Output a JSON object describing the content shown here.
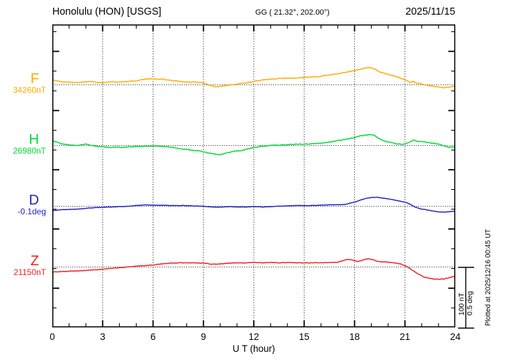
{
  "header": {
    "title": "Honolulu (HON)  [USGS]",
    "coords": "GG ( 21.32°, 202.00°)",
    "date": "2025/11/15"
  },
  "side_notes": {
    "scale_bar_line1": "100 nT",
    "scale_bar_line2": "0.5 deg",
    "plotted_at": "Plotted at 2025/12/16 00:45 UT"
  },
  "chart_data": {
    "type": "line",
    "title": "Honolulu (HON) [USGS] magnetogram 2025/11/15",
    "xlabel": "U T (hour)",
    "xlim": [
      0,
      24
    ],
    "x_ticks": [
      0,
      3,
      6,
      9,
      12,
      15,
      18,
      21,
      24
    ],
    "x_minor_step": 1,
    "grid": "vertical dotted lines every 3 hours; dotted horizontal baseline per trace",
    "legend_position": "left margin channel labels",
    "scale_bar": {
      "nT": 100,
      "deg": 0.5
    },
    "points_are": "offsets from each channel baseline, in the channel unit",
    "series": [
      {
        "name": "F",
        "baseline_label": "34260nT",
        "baseline_value": 34260,
        "unit": "nT",
        "color": "#FFAB00",
        "points": [
          [
            0,
            8
          ],
          [
            0.5,
            5.2
          ],
          [
            1,
            4.7
          ],
          [
            1.5,
            4.1
          ],
          [
            2,
            4.7
          ],
          [
            2.3,
            5.8
          ],
          [
            2.6,
            4.1
          ],
          [
            3,
            3.5
          ],
          [
            3.5,
            5.2
          ],
          [
            4,
            4.7
          ],
          [
            4.5,
            5.8
          ],
          [
            5,
            6.4
          ],
          [
            5.5,
            9.3
          ],
          [
            6,
            9.9
          ],
          [
            6.5,
            9.3
          ],
          [
            7,
            7.6
          ],
          [
            7.5,
            5.8
          ],
          [
            8,
            4.7
          ],
          [
            8.5,
            4.7
          ],
          [
            9,
            3.5
          ],
          [
            9.3,
            0
          ],
          [
            9.7,
            -3.5
          ],
          [
            10,
            -2.9
          ],
          [
            10.5,
            -0.6
          ],
          [
            11,
            1.2
          ],
          [
            11.5,
            2.9
          ],
          [
            12,
            5.8
          ],
          [
            12.5,
            8.1
          ],
          [
            13,
            9.3
          ],
          [
            13.5,
            10.5
          ],
          [
            14,
            11
          ],
          [
            14.5,
            11.6
          ],
          [
            15,
            12.2
          ],
          [
            15.5,
            12.8
          ],
          [
            16,
            14
          ],
          [
            16.5,
            16.3
          ],
          [
            17,
            18.6
          ],
          [
            17.5,
            20.9
          ],
          [
            18,
            23.8
          ],
          [
            18.3,
            25.6
          ],
          [
            18.6,
            27.9
          ],
          [
            18.9,
            28.5
          ],
          [
            19.2,
            26.2
          ],
          [
            19.5,
            21.5
          ],
          [
            20,
            17.4
          ],
          [
            20.5,
            13.4
          ],
          [
            21,
            8.1
          ],
          [
            21.3,
            4.7
          ],
          [
            21.5,
            5.8
          ],
          [
            21.7,
            2.9
          ],
          [
            22,
            1.2
          ],
          [
            22.3,
            -0.6
          ],
          [
            22.7,
            -2.3
          ],
          [
            23,
            -3.5
          ],
          [
            23.3,
            -4.7
          ],
          [
            23.6,
            -4.1
          ],
          [
            24,
            -2.3
          ]
        ]
      },
      {
        "name": "H",
        "baseline_label": "26980nT",
        "baseline_value": 26980,
        "unit": "nT",
        "color": "#00D838",
        "points": [
          [
            0,
            8.1
          ],
          [
            0.5,
            3.5
          ],
          [
            1,
            1.2
          ],
          [
            1.5,
            0
          ],
          [
            2,
            2.3
          ],
          [
            2.3,
            0.6
          ],
          [
            2.6,
            -1.2
          ],
          [
            3,
            -2.3
          ],
          [
            3.5,
            -2.9
          ],
          [
            4,
            -2.9
          ],
          [
            4.5,
            -2.3
          ],
          [
            5,
            -1.7
          ],
          [
            5.5,
            -1.2
          ],
          [
            6,
            -0.6
          ],
          [
            6.5,
            -1.2
          ],
          [
            7,
            -2.3
          ],
          [
            7.5,
            -4.7
          ],
          [
            8,
            -6.4
          ],
          [
            8.5,
            -8.1
          ],
          [
            8.8,
            -8.7
          ],
          [
            9,
            -10.5
          ],
          [
            9.3,
            -12.2
          ],
          [
            9.6,
            -14
          ],
          [
            9.9,
            -15.1
          ],
          [
            10.2,
            -14
          ],
          [
            10.5,
            -11.6
          ],
          [
            11,
            -8.7
          ],
          [
            11.3,
            -8.1
          ],
          [
            11.6,
            -5.8
          ],
          [
            12,
            -3.5
          ],
          [
            12.5,
            -1.2
          ],
          [
            13,
            0
          ],
          [
            13.5,
            0.6
          ],
          [
            14,
            1.2
          ],
          [
            14.5,
            2.3
          ],
          [
            15,
            2.3
          ],
          [
            15.5,
            2.9
          ],
          [
            16,
            4.1
          ],
          [
            16.5,
            5.8
          ],
          [
            17,
            8.1
          ],
          [
            17.5,
            10.5
          ],
          [
            18,
            13.4
          ],
          [
            18.3,
            15.7
          ],
          [
            18.6,
            17.4
          ],
          [
            18.9,
            18
          ],
          [
            19.2,
            16.9
          ],
          [
            19.4,
            12.8
          ],
          [
            19.7,
            8.1
          ],
          [
            20,
            5.8
          ],
          [
            20.3,
            4.1
          ],
          [
            20.7,
            2.3
          ],
          [
            21,
            2.3
          ],
          [
            21.2,
            4.7
          ],
          [
            21.5,
            9.3
          ],
          [
            21.8,
            6.4
          ],
          [
            22,
            7
          ],
          [
            22.3,
            5.2
          ],
          [
            22.6,
            4.1
          ],
          [
            23,
            2.9
          ],
          [
            23.3,
            0
          ],
          [
            23.6,
            -2.9
          ],
          [
            24,
            -2.3
          ]
        ]
      },
      {
        "name": "D",
        "baseline_label": "-0.1deg",
        "baseline_value": -0.1,
        "unit": "deg",
        "color": "#2222CC",
        "points": [
          [
            0,
            -0.035
          ],
          [
            0.5,
            -0.029
          ],
          [
            1,
            -0.026
          ],
          [
            1.5,
            -0.023
          ],
          [
            2,
            -0.017
          ],
          [
            2.5,
            -0.012
          ],
          [
            3,
            -0.009
          ],
          [
            3.5,
            -0.006
          ],
          [
            4,
            -0.003
          ],
          [
            4.5,
            0
          ],
          [
            5,
            0.006
          ],
          [
            5.5,
            0.012
          ],
          [
            6,
            0.009
          ],
          [
            6.5,
            0.009
          ],
          [
            7,
            0.006
          ],
          [
            7.5,
            0.006
          ],
          [
            8,
            0.006
          ],
          [
            8.5,
            0.003
          ],
          [
            9,
            0
          ],
          [
            9.5,
            -0.006
          ],
          [
            10,
            -0.006
          ],
          [
            10.5,
            -0.003
          ],
          [
            11,
            -0.006
          ],
          [
            11.5,
            -0.006
          ],
          [
            12,
            -0.003
          ],
          [
            12.5,
            -0.006
          ],
          [
            13,
            -0.003
          ],
          [
            13.5,
            0
          ],
          [
            14,
            0.003
          ],
          [
            14.5,
            0.006
          ],
          [
            15,
            0.006
          ],
          [
            15.5,
            0.006
          ],
          [
            16,
            0.009
          ],
          [
            16.5,
            0.012
          ],
          [
            17,
            0.012
          ],
          [
            17.5,
            0.017
          ],
          [
            18,
            0.035
          ],
          [
            18.3,
            0.049
          ],
          [
            18.6,
            0.064
          ],
          [
            19,
            0.073
          ],
          [
            19.3,
            0.076
          ],
          [
            19.6,
            0.07
          ],
          [
            20,
            0.061
          ],
          [
            20.5,
            0.049
          ],
          [
            21,
            0.035
          ],
          [
            21.3,
            0.017
          ],
          [
            21.6,
            -0.006
          ],
          [
            22,
            -0.023
          ],
          [
            22.5,
            -0.035
          ],
          [
            23,
            -0.047
          ],
          [
            23.4,
            -0.049
          ],
          [
            23.7,
            -0.044
          ],
          [
            24,
            -0.041
          ]
        ]
      },
      {
        "name": "Z",
        "baseline_label": "21150nT",
        "baseline_value": 21150,
        "unit": "nT",
        "color": "#EE2222",
        "points": [
          [
            0,
            -8.1
          ],
          [
            0.5,
            -7.6
          ],
          [
            1,
            -7
          ],
          [
            1.5,
            -6.4
          ],
          [
            2,
            -5.8
          ],
          [
            2.5,
            -4.7
          ],
          [
            3,
            -3.5
          ],
          [
            3.5,
            -2.3
          ],
          [
            4,
            -1.2
          ],
          [
            4.5,
            0
          ],
          [
            5,
            1.2
          ],
          [
            5.5,
            2.3
          ],
          [
            6,
            3.5
          ],
          [
            6.5,
            5.2
          ],
          [
            7,
            6.4
          ],
          [
            7.5,
            7
          ],
          [
            8,
            7
          ],
          [
            8.5,
            7
          ],
          [
            9,
            6.4
          ],
          [
            9.5,
            4.7
          ],
          [
            10,
            5.2
          ],
          [
            10.5,
            6.4
          ],
          [
            11,
            7
          ],
          [
            11.5,
            7
          ],
          [
            12,
            7.6
          ],
          [
            12.5,
            7
          ],
          [
            13,
            7.6
          ],
          [
            13.5,
            7
          ],
          [
            14,
            7.6
          ],
          [
            14.5,
            7
          ],
          [
            15,
            7
          ],
          [
            15.5,
            7
          ],
          [
            16,
            7
          ],
          [
            16.5,
            7.6
          ],
          [
            17,
            8.1
          ],
          [
            17.3,
            10.5
          ],
          [
            17.6,
            12.8
          ],
          [
            17.9,
            11.6
          ],
          [
            18.2,
            9.3
          ],
          [
            18.5,
            11.6
          ],
          [
            18.8,
            14
          ],
          [
            19.1,
            12.2
          ],
          [
            19.4,
            9.3
          ],
          [
            19.7,
            8.7
          ],
          [
            20,
            8.1
          ],
          [
            20.4,
            7
          ],
          [
            20.8,
            4.7
          ],
          [
            21.2,
            -0.6
          ],
          [
            21.5,
            -6.4
          ],
          [
            21.8,
            -11.6
          ],
          [
            22.1,
            -16.3
          ],
          [
            22.4,
            -18.6
          ],
          [
            22.7,
            -19.8
          ],
          [
            23,
            -20.3
          ],
          [
            23.3,
            -19.8
          ],
          [
            23.6,
            -18
          ],
          [
            24,
            -15.1
          ]
        ]
      }
    ]
  }
}
